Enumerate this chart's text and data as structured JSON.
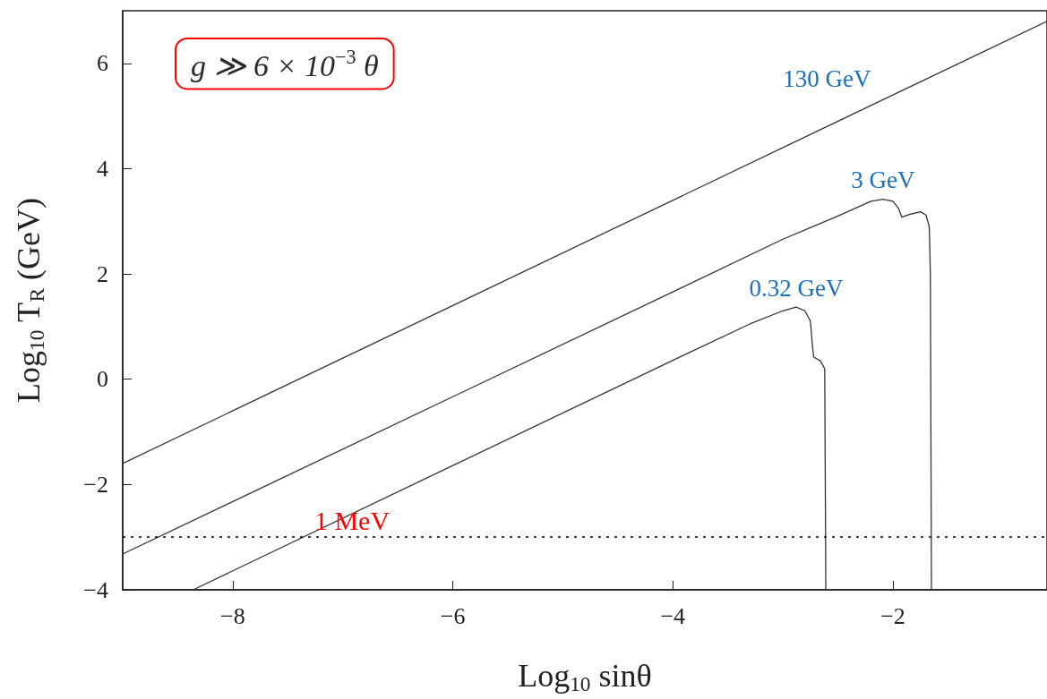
{
  "chart_data": {
    "type": "line",
    "xlabel": "Log$_{10}$ sinθ",
    "ylabel": "Log$_{10}$ T$_{R}$ (GeV)",
    "annotations": [
      "g ≫ 6 × 10$^{−3}$ θ"
    ],
    "xlim": [
      -9,
      -0.6
    ],
    "xticks": [
      -8,
      -6,
      -4,
      -2
    ],
    "ylim": [
      -4,
      7
    ],
    "yticks": [
      -4,
      -2,
      0,
      2,
      4,
      6
    ],
    "grid": false,
    "legend": false,
    "marker": "none",
    "line_style": "solid",
    "ref_lines": [
      {
        "axis": "y",
        "value": -3,
        "label": "1 MeV",
        "color": "#000000",
        "line_style": "dotted"
      }
    ],
    "series": [
      {
        "name": "130 GeV",
        "color": "#333333",
        "x": [
          -9,
          -2.6,
          -0.6
        ],
        "values": [
          -1.6,
          4.8,
          6.8
        ]
      },
      {
        "name": "3 GeV",
        "color": "#333333",
        "x": [
          -9,
          -4,
          -3,
          -2.5,
          -2.2,
          -2.09,
          -2.0,
          -1.95,
          -1.92,
          -1.85,
          -1.75,
          -1.7,
          -1.67,
          -1.66,
          -1.65
        ],
        "values": [
          -3.32,
          1.66,
          2.66,
          3.1,
          3.38,
          3.42,
          3.38,
          3.25,
          3.08,
          3.13,
          3.18,
          3.12,
          2.9,
          2.0,
          -4
        ]
      },
      {
        "name": "0.32 GeV",
        "color": "#333333",
        "x": [
          -8.36,
          -4,
          -3.3,
          -3.0,
          -2.88,
          -2.8,
          -2.75,
          -2.73,
          -2.72,
          -2.66,
          -2.62,
          -2.61
        ],
        "values": [
          -4,
          0.36,
          1.05,
          1.3,
          1.37,
          1.3,
          1.1,
          0.6,
          0.42,
          0.35,
          0.2,
          -4
        ]
      }
    ]
  }
}
